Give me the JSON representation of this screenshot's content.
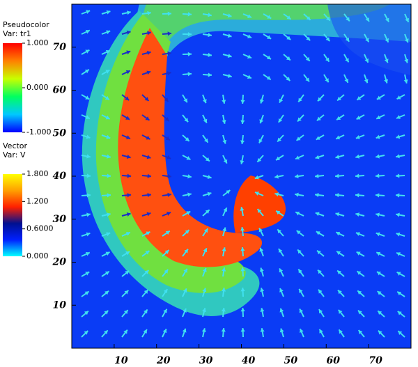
{
  "chart_data": {
    "type": "field",
    "xlim": [
      0,
      80
    ],
    "ylim": [
      0,
      80
    ],
    "xticks": [
      10,
      20,
      30,
      40,
      50,
      60,
      70
    ],
    "yticks": [
      10,
      20,
      30,
      40,
      50,
      60,
      70
    ],
    "legends": [
      {
        "title": "Pseudocolor",
        "variable": "Var: tr1",
        "lim": [
          -1,
          1
        ],
        "ticks": [
          {
            "value": 1,
            "label": "1.000"
          },
          {
            "value": 0,
            "label": "0.000"
          },
          {
            "value": -1,
            "label": "-1.000"
          }
        ],
        "colors": [
          "#0000ff",
          "#00c8ff",
          "#00ff60",
          "#c8ff00",
          "#ff8000",
          "#ff0000"
        ]
      },
      {
        "title": "Vector",
        "variable": "Var: V",
        "lim": [
          0,
          1.8
        ],
        "ticks": [
          {
            "value": 1.8,
            "label": "1.800"
          },
          {
            "value": 1.2,
            "label": "1.200"
          },
          {
            "value": 0.6,
            "label": "0.6000"
          },
          {
            "value": 0,
            "label": "0.000"
          }
        ],
        "colors": [
          "#00ffff",
          "#0020ff",
          "#001090",
          "#ff2000",
          "#ffa000",
          "#ffff00"
        ]
      }
    ]
  }
}
